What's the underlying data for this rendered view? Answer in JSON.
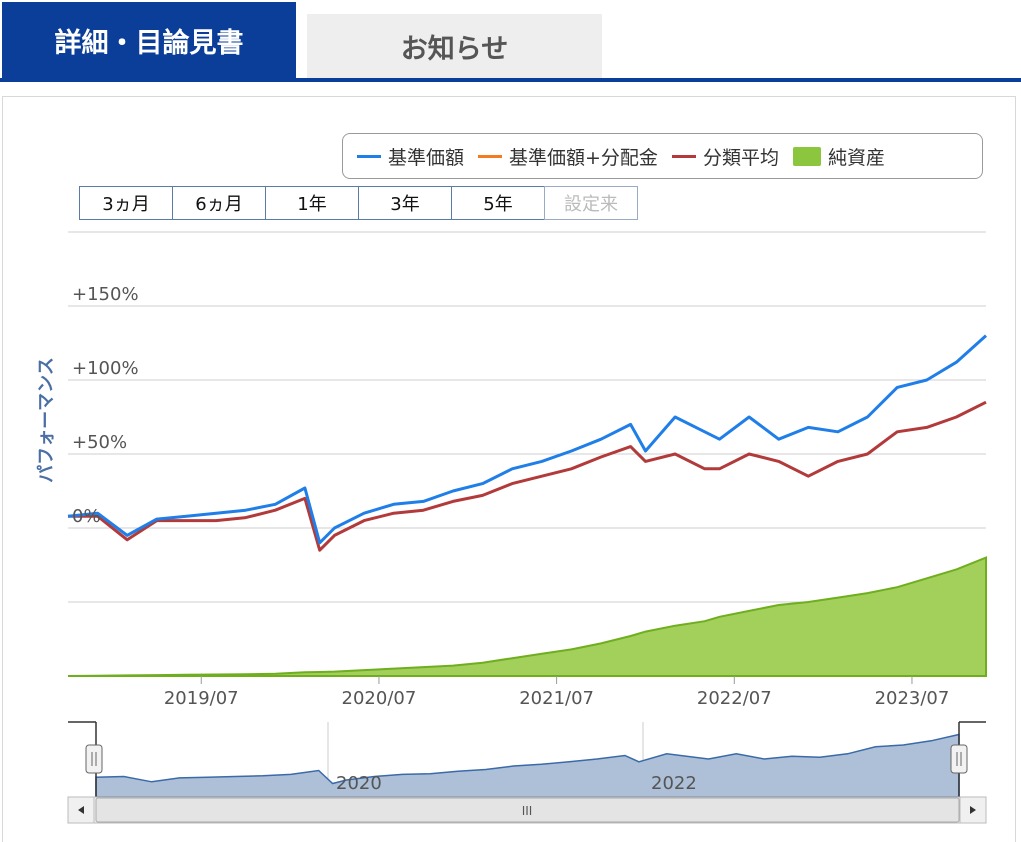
{
  "tabs": [
    {
      "label": "詳細・目論見書",
      "active": true
    },
    {
      "label": "お知らせ",
      "active": false
    }
  ],
  "legend": [
    {
      "label": "基準価額",
      "color": "#1f7ee8",
      "kind": "line"
    },
    {
      "label": "基準価額+分配金",
      "color": "#f47b20",
      "kind": "line"
    },
    {
      "label": "分類平均",
      "color": "#b23a3a",
      "kind": "line"
    },
    {
      "label": "純資産",
      "color": "#8cc63f",
      "kind": "area"
    }
  ],
  "range_buttons": [
    {
      "label": "3ヵ月",
      "enabled": true
    },
    {
      "label": "6ヵ月",
      "enabled": true
    },
    {
      "label": "1年",
      "enabled": true
    },
    {
      "label": "3年",
      "enabled": true
    },
    {
      "label": "5年",
      "enabled": true
    },
    {
      "label": "設定来",
      "enabled": false
    }
  ],
  "navigator": {
    "labels": [
      "2020",
      "2022"
    ],
    "scrollbar_grip": "III"
  },
  "chart_data": {
    "type": "line",
    "ylabel": "パフォーマンス",
    "x_tick_labels": [
      "2019/07",
      "2020/07",
      "2021/07",
      "2022/07",
      "2023/07"
    ],
    "y_tick_labels": [
      "+150%",
      "+100%",
      "+50%",
      "0%"
    ],
    "y_ticks": [
      150,
      100,
      50,
      0
    ],
    "ylim": [
      -100,
      200
    ],
    "xlim": [
      "2018/10",
      "2023/12"
    ],
    "grid": true,
    "legend_position": "top-right",
    "x": [
      "2018/10",
      "2018/12",
      "2019/02",
      "2019/04",
      "2019/06",
      "2019/08",
      "2019/10",
      "2019/12",
      "2020/02",
      "2020/03",
      "2020/04",
      "2020/06",
      "2020/08",
      "2020/10",
      "2020/12",
      "2021/02",
      "2021/04",
      "2021/06",
      "2021/08",
      "2021/10",
      "2021/12",
      "2022/01",
      "2022/03",
      "2022/05",
      "2022/06",
      "2022/08",
      "2022/10",
      "2022/12",
      "2023/02",
      "2023/04",
      "2023/06",
      "2023/08",
      "2023/10",
      "2023/12"
    ],
    "series": [
      {
        "name": "基準価額",
        "color": "#1f7ee8",
        "values": [
          8,
          10,
          -5,
          6,
          8,
          10,
          12,
          16,
          27,
          -10,
          0,
          10,
          16,
          18,
          25,
          30,
          40,
          45,
          52,
          60,
          70,
          52,
          75,
          65,
          60,
          75,
          60,
          68,
          65,
          75,
          95,
          100,
          112,
          130
        ]
      },
      {
        "name": "分類平均",
        "color": "#b23a3a",
        "values": [
          8,
          8,
          -8,
          5,
          5,
          5,
          7,
          12,
          20,
          -15,
          -5,
          5,
          10,
          12,
          18,
          22,
          30,
          35,
          40,
          48,
          55,
          45,
          50,
          40,
          40,
          50,
          45,
          35,
          45,
          50,
          65,
          68,
          75,
          85
        ]
      },
      {
        "name": "純資産",
        "color": "#8cc63f",
        "kind": "area",
        "values": [
          -100,
          -99.8,
          -99.6,
          -99.4,
          -99.2,
          -99,
          -98.8,
          -98.5,
          -97.5,
          -97.3,
          -97,
          -96,
          -95,
          -94,
          -93,
          -91,
          -88,
          -85,
          -82,
          -78,
          -73,
          -70,
          -66,
          -63,
          -60,
          -56,
          -52,
          -50,
          -47,
          -44,
          -40,
          -34,
          -28,
          -20
        ]
      }
    ]
  }
}
